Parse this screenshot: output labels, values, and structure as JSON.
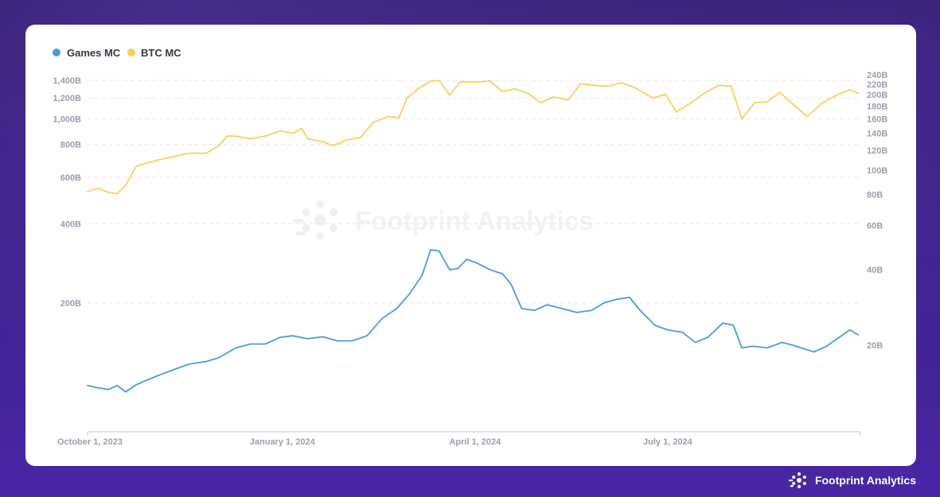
{
  "brand": {
    "name": "Footprint Analytics"
  },
  "watermark": {
    "text": "Footprint Analytics"
  },
  "colors": {
    "games": "#4a9be0",
    "btc": "#f5d25a",
    "grid": "#e6e6e6",
    "axis_text": "#9aa0ac"
  },
  "chart_data": {
    "type": "line",
    "x_ticks": [
      "October 1, 2023",
      "January 1, 2024",
      "April 1, 2024",
      "July 1, 2024"
    ],
    "x_range": [
      "2023-10-01",
      "2024-09-30"
    ],
    "left_axis": {
      "scale": "log",
      "ticks": [
        {
          "value": 200,
          "label": "200B"
        },
        {
          "value": 400,
          "label": "400B"
        },
        {
          "value": 600,
          "label": "600B"
        },
        {
          "value": 800,
          "label": "800B"
        },
        {
          "value": 1000,
          "label": "1,000B"
        },
        {
          "value": 1200,
          "label": "1,200B"
        },
        {
          "value": 1400,
          "label": "1,400B"
        }
      ],
      "grid": true
    },
    "right_axis": {
      "scale": "log",
      "ticks": [
        {
          "value": 20,
          "label": "20B"
        },
        {
          "value": 40,
          "label": "40B"
        },
        {
          "value": 60,
          "label": "60B"
        },
        {
          "value": 80,
          "label": "80B"
        },
        {
          "value": 100,
          "label": "100B"
        },
        {
          "value": 120,
          "label": "120B"
        },
        {
          "value": 140,
          "label": "140B"
        },
        {
          "value": 160,
          "label": "160B"
        },
        {
          "value": 180,
          "label": "180B"
        },
        {
          "value": 200,
          "label": "200B"
        },
        {
          "value": 220,
          "label": "220B"
        },
        {
          "value": 240,
          "label": "240B"
        }
      ]
    },
    "legend_position": "top-left",
    "series": [
      {
        "name": "Games MC",
        "axis": "right",
        "color": "#4a9be0",
        "points": [
          [
            "2023-10-01",
            13.8
          ],
          [
            "2023-10-06",
            13.5
          ],
          [
            "2023-10-11",
            13.3
          ],
          [
            "2023-10-15",
            13.8
          ],
          [
            "2023-10-19",
            13.0
          ],
          [
            "2023-10-24",
            13.9
          ],
          [
            "2023-10-29",
            14.5
          ],
          [
            "2023-11-04",
            15.2
          ],
          [
            "2023-11-11",
            16.0
          ],
          [
            "2023-11-18",
            16.8
          ],
          [
            "2023-11-26",
            17.2
          ],
          [
            "2023-12-02",
            17.8
          ],
          [
            "2023-12-10",
            19.5
          ],
          [
            "2023-12-17",
            20.2
          ],
          [
            "2023-12-24",
            20.2
          ],
          [
            "2023-12-31",
            21.5
          ],
          [
            "2024-01-06",
            21.8
          ],
          [
            "2024-01-13",
            21.2
          ],
          [
            "2024-01-20",
            21.6
          ],
          [
            "2024-01-27",
            20.8
          ],
          [
            "2024-02-03",
            20.8
          ],
          [
            "2024-02-10",
            21.8
          ],
          [
            "2024-02-17",
            25.5
          ],
          [
            "2024-02-24",
            28.0
          ],
          [
            "2024-03-01",
            32.0
          ],
          [
            "2024-03-07",
            38.0
          ],
          [
            "2024-03-11",
            48.0
          ],
          [
            "2024-03-15",
            47.5
          ],
          [
            "2024-03-20",
            40.0
          ],
          [
            "2024-03-24",
            40.5
          ],
          [
            "2024-03-28",
            44.0
          ],
          [
            "2024-04-02",
            42.5
          ],
          [
            "2024-04-08",
            40.0
          ],
          [
            "2024-04-14",
            38.5
          ],
          [
            "2024-04-18",
            35.0
          ],
          [
            "2024-04-23",
            28.0
          ],
          [
            "2024-04-29",
            27.5
          ],
          [
            "2024-05-05",
            29.0
          ],
          [
            "2024-05-12",
            28.0
          ],
          [
            "2024-05-19",
            27.0
          ],
          [
            "2024-05-26",
            27.5
          ],
          [
            "2024-06-01",
            29.5
          ],
          [
            "2024-06-07",
            30.5
          ],
          [
            "2024-06-13",
            31.0
          ],
          [
            "2024-06-18",
            27.5
          ],
          [
            "2024-06-25",
            24.0
          ],
          [
            "2024-07-01",
            23.0
          ],
          [
            "2024-07-08",
            22.5
          ],
          [
            "2024-07-14",
            20.5
          ],
          [
            "2024-07-20",
            21.5
          ],
          [
            "2024-07-27",
            24.5
          ],
          [
            "2024-08-01",
            24.0
          ],
          [
            "2024-08-05",
            19.5
          ],
          [
            "2024-08-10",
            19.8
          ],
          [
            "2024-08-17",
            19.5
          ],
          [
            "2024-08-24",
            20.5
          ],
          [
            "2024-08-29",
            20.0
          ],
          [
            "2024-09-02",
            19.5
          ],
          [
            "2024-09-08",
            18.8
          ],
          [
            "2024-09-14",
            19.8
          ],
          [
            "2024-09-20",
            21.5
          ],
          [
            "2024-09-25",
            23.0
          ],
          [
            "2024-09-29",
            22.0
          ]
        ]
      },
      {
        "name": "BTC MC",
        "axis": "left",
        "color": "#f5d25a",
        "points": [
          [
            "2023-10-01",
            530
          ],
          [
            "2023-10-06",
            545
          ],
          [
            "2023-10-11",
            525
          ],
          [
            "2023-10-15",
            520
          ],
          [
            "2023-10-19",
            560
          ],
          [
            "2023-10-24",
            660
          ],
          [
            "2023-10-29",
            680
          ],
          [
            "2023-11-04",
            700
          ],
          [
            "2023-11-11",
            720
          ],
          [
            "2023-11-18",
            740
          ],
          [
            "2023-11-26",
            740
          ],
          [
            "2023-12-02",
            790
          ],
          [
            "2023-12-06",
            860
          ],
          [
            "2023-12-10",
            860
          ],
          [
            "2023-12-17",
            840
          ],
          [
            "2023-12-24",
            860
          ],
          [
            "2023-12-31",
            900
          ],
          [
            "2024-01-06",
            880
          ],
          [
            "2024-01-10",
            920
          ],
          [
            "2024-01-13",
            840
          ],
          [
            "2024-01-20",
            820
          ],
          [
            "2024-01-25",
            790
          ],
          [
            "2024-01-31",
            830
          ],
          [
            "2024-02-07",
            850
          ],
          [
            "2024-02-13",
            970
          ],
          [
            "2024-02-20",
            1020
          ],
          [
            "2024-02-25",
            1010
          ],
          [
            "2024-02-29",
            1200
          ],
          [
            "2024-03-05",
            1300
          ],
          [
            "2024-03-11",
            1390
          ],
          [
            "2024-03-15",
            1400
          ],
          [
            "2024-03-20",
            1230
          ],
          [
            "2024-03-25",
            1380
          ],
          [
            "2024-04-02",
            1380
          ],
          [
            "2024-04-08",
            1390
          ],
          [
            "2024-04-14",
            1270
          ],
          [
            "2024-04-20",
            1300
          ],
          [
            "2024-04-26",
            1250
          ],
          [
            "2024-05-02",
            1150
          ],
          [
            "2024-05-08",
            1210
          ],
          [
            "2024-05-15",
            1180
          ],
          [
            "2024-05-21",
            1360
          ],
          [
            "2024-05-27",
            1340
          ],
          [
            "2024-06-03",
            1330
          ],
          [
            "2024-06-09",
            1370
          ],
          [
            "2024-06-15",
            1320
          ],
          [
            "2024-06-24",
            1200
          ],
          [
            "2024-06-30",
            1240
          ],
          [
            "2024-07-05",
            1060
          ],
          [
            "2024-07-12",
            1150
          ],
          [
            "2024-07-19",
            1260
          ],
          [
            "2024-07-25",
            1340
          ],
          [
            "2024-07-31",
            1330
          ],
          [
            "2024-08-05",
            1000
          ],
          [
            "2024-08-11",
            1150
          ],
          [
            "2024-08-17",
            1160
          ],
          [
            "2024-08-23",
            1260
          ],
          [
            "2024-08-29",
            1140
          ],
          [
            "2024-09-05",
            1020
          ],
          [
            "2024-09-12",
            1150
          ],
          [
            "2024-09-19",
            1230
          ],
          [
            "2024-09-25",
            1290
          ],
          [
            "2024-09-29",
            1250
          ]
        ]
      }
    ]
  }
}
